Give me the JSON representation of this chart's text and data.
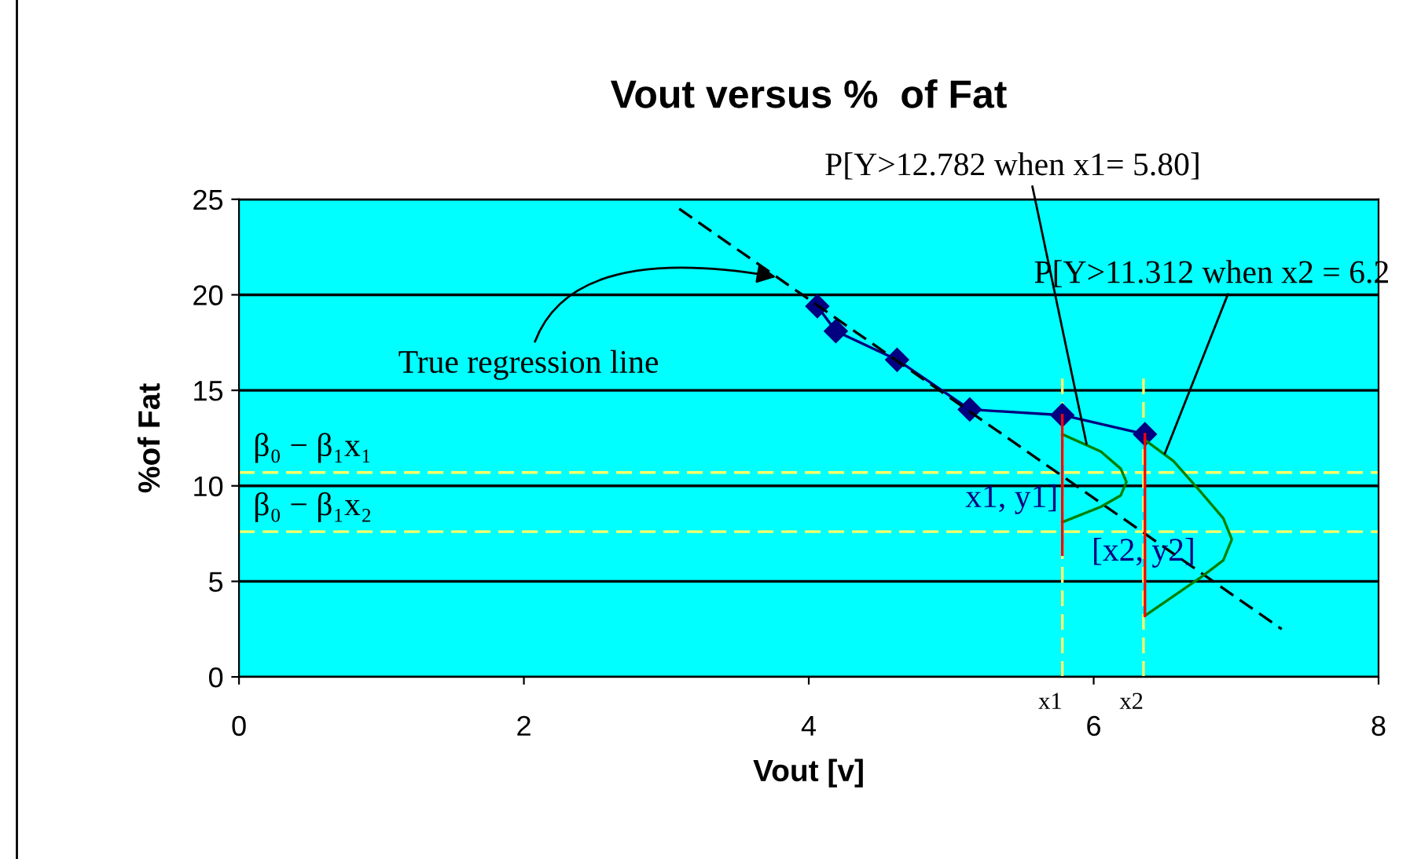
{
  "chart_data": {
    "type": "line",
    "title": "Vout versus %  of Fat",
    "xlabel": "Vout [v]",
    "ylabel": "%of Fat",
    "xlim": [
      0,
      8
    ],
    "xticks": [
      0,
      2,
      4,
      6,
      8
    ],
    "ylim": [
      0,
      25
    ],
    "yticks": [
      0,
      5,
      10,
      15,
      20,
      25
    ],
    "grid": "y",
    "legend": false,
    "series": [
      {
        "color": "#000080",
        "marker": "diamond",
        "line_style": "solid",
        "x": [
          4.06,
          4.19,
          4.62,
          5.13,
          5.78,
          6.36
        ],
        "values": [
          19.4,
          18.1,
          16.6,
          14.0,
          13.7,
          12.7
        ]
      },
      {
        "color": "#000000",
        "marker": "none",
        "line_style": "dashed",
        "x": [
          3.09,
          7.32
        ],
        "values": [
          24.5,
          2.5
        ]
      },
      {
        "color": "#008000",
        "marker": "none",
        "line_style": "solid",
        "x": [
          5.78,
          6.05,
          6.19,
          6.23,
          6.19,
          6.05,
          5.78
        ],
        "values": [
          12.7,
          11.8,
          10.9,
          10.2,
          9.5,
          8.9,
          8.1
        ]
      },
      {
        "color": "#008000",
        "marker": "none",
        "line_style": "solid",
        "x": [
          6.36,
          6.56,
          6.75,
          6.91,
          6.97,
          6.91,
          6.75,
          6.36
        ],
        "values": [
          12.4,
          11.3,
          9.7,
          8.3,
          7.2,
          6.1,
          5.2,
          3.2
        ]
      },
      {
        "color": "#ff0000",
        "marker": "none",
        "line_style": "solid",
        "x": [
          5.78,
          5.78
        ],
        "values": [
          13.7,
          6.4
        ]
      },
      {
        "color": "#ff0000",
        "marker": "none",
        "line_style": "solid",
        "x": [
          6.36,
          6.36
        ],
        "values": [
          12.7,
          3.2
        ]
      }
    ],
    "ref_lines": [
      {
        "axis": "y",
        "value": 10.7,
        "label": "β₀ − β₁x₁",
        "color": "#ffff66",
        "line_style": "dashed"
      },
      {
        "axis": "y",
        "value": 7.6,
        "label": "β₀ − β₁x₂",
        "color": "#ffff66",
        "line_style": "dashed"
      },
      {
        "axis": "x",
        "value": 5.78,
        "label": "x1",
        "color": "#ffff66",
        "line_style": "dashed"
      },
      {
        "axis": "x",
        "value": 6.35,
        "label": "x2",
        "color": "#ffff66",
        "line_style": "dashed"
      }
    ],
    "annotations": [
      {
        "text": "True regression line",
        "x": 3.8,
        "y": 20.9
      },
      {
        "text": "P[Y>12.782 when x1= 5.80]",
        "x": 5.95,
        "y": 12.2
      },
      {
        "text": "P[Y>11.312 when x2 = 6.2",
        "x": 6.5,
        "y": 11.7
      },
      {
        "text": "x1, y1]",
        "x": 5.75,
        "y": 9.3
      },
      {
        "text": "[x2, y2]",
        "x": 6.35,
        "y": 6.5
      }
    ]
  }
}
